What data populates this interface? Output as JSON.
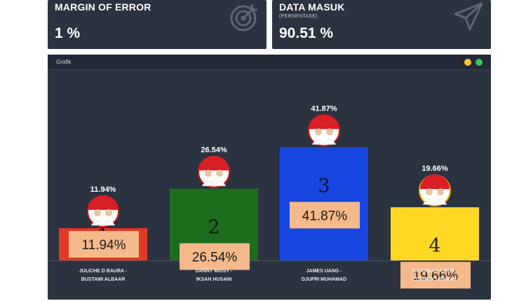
{
  "cards": {
    "moe": {
      "title": "MARGIN OF ERROR",
      "value": "1 %",
      "icon": "target-icon"
    },
    "data_masuk": {
      "title": "DATA MASUK",
      "subtitle": "(PERSENTASE)",
      "value": "90.51 %",
      "icon": "send-icon"
    }
  },
  "panel": {
    "title": "Grafik"
  },
  "colors": {
    "card_bg": "#2b3240",
    "bar_1": "#e03a25",
    "bar_2": "#1e6d1e",
    "bar_3": "#1747e0",
    "bar_4": "#ffd824",
    "label_box": "#f5b98c"
  },
  "chart_data": {
    "type": "bar",
    "categories": [
      [
        "JULICHE D BAURA -",
        "BUSTAMI ALBAAR"
      ],
      [
        "DANNY MISSY -",
        "IKSAN HUSAIN"
      ],
      [
        "JAMES UANG -",
        "DJUFRI MUHAMAD"
      ],
      [
        "ISKANDAR IDRUS -",
        "LUSIANY I DAMAR"
      ]
    ],
    "values": [
      11.94,
      26.54,
      41.87,
      19.66
    ],
    "top_labels": [
      "11.94%",
      "26.54%",
      "41.87%",
      "19.66%"
    ],
    "inner_labels": [
      "11.94%",
      "26.54%",
      "41.87%",
      "19.66%"
    ],
    "numbers": [
      "1",
      "2",
      "3",
      "4"
    ],
    "grid": false,
    "legend": "none"
  }
}
